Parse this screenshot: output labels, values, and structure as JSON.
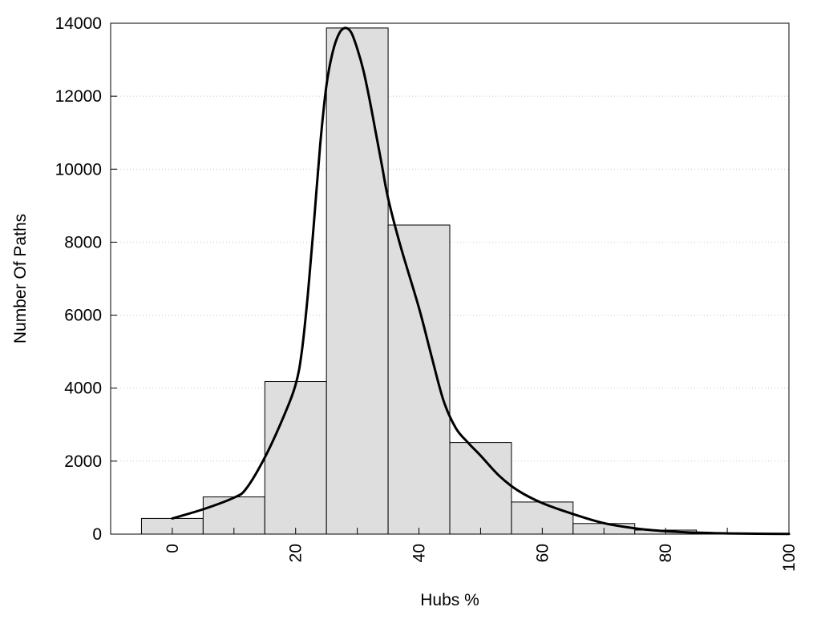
{
  "chart_data": {
    "type": "bar",
    "title": "",
    "xlabel": "Hubs %",
    "ylabel": "Number Of Paths",
    "xlim": [
      -10,
      100
    ],
    "ylim": [
      0,
      14000
    ],
    "x_ticks": [
      0,
      20,
      40,
      60,
      80,
      100
    ],
    "y_ticks": [
      0,
      2000,
      4000,
      6000,
      8000,
      10000,
      12000,
      14000
    ],
    "grid": "horizontal dotted",
    "legend": "none",
    "bin_width": 10,
    "bars": [
      {
        "x": 0,
        "value": 430
      },
      {
        "x": 10,
        "value": 1020
      },
      {
        "x": 20,
        "value": 4180
      },
      {
        "x": 30,
        "value": 13870
      },
      {
        "x": 40,
        "value": 8470
      },
      {
        "x": 50,
        "value": 2510
      },
      {
        "x": 60,
        "value": 880
      },
      {
        "x": 70,
        "value": 290
      },
      {
        "x": 80,
        "value": 110
      },
      {
        "x": 90,
        "value": 20
      }
    ],
    "curve": {
      "x": [
        0,
        5,
        10,
        12,
        15,
        18,
        20,
        21,
        22,
        23,
        24,
        25,
        26,
        27,
        28,
        29,
        30,
        31,
        32,
        33,
        34,
        35,
        37,
        40,
        42,
        44,
        46,
        48,
        50,
        53,
        56,
        60,
        65,
        70,
        75,
        80,
        85,
        90,
        95,
        100
      ],
      "y": [
        430,
        680,
        1000,
        1250,
        2100,
        3200,
        4100,
        5000,
        6600,
        8600,
        10700,
        12300,
        13200,
        13700,
        13870,
        13750,
        13300,
        12700,
        11900,
        11000,
        10100,
        9200,
        7900,
        6200,
        4900,
        3650,
        2900,
        2500,
        2150,
        1600,
        1200,
        850,
        550,
        300,
        160,
        80,
        40,
        20,
        10,
        5
      ]
    },
    "bar_color": "#dedede",
    "curve_color": "#000000"
  }
}
